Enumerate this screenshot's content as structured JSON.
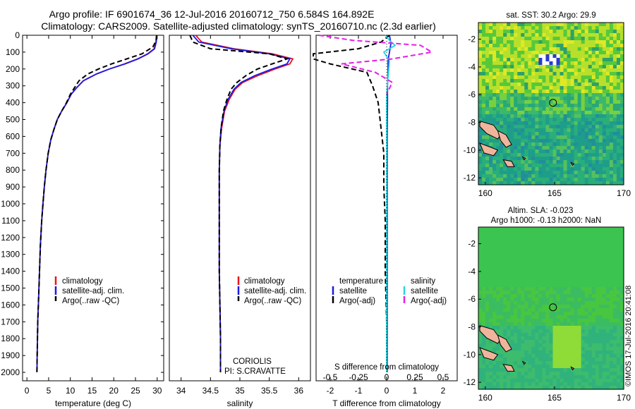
{
  "header": {
    "title_line1": "Argo profile: IF 6901674_36 12-Jul-2016 20160712_750 6.584S 164.892E",
    "title_line2": "Climatology: CARS2009. Satellite-adjusted climatology: synTS_20160710.nc (2.3d earlier)"
  },
  "colors": {
    "climatology": "#e8141c",
    "satellite": "#1a1ae6",
    "argo": "#000000",
    "sal_satellite": "#22d8e6",
    "sal_argo": "#e61ee6",
    "land": "#f0b49c"
  },
  "chart_data": [
    {
      "id": "temperature",
      "type": "line",
      "xlabel": "temperature (deg C)",
      "ylabel": "",
      "xlim": [
        -1,
        31.5
      ],
      "ylim": [
        2050,
        0
      ],
      "y_reversed": true,
      "xticks": [
        "0",
        "5",
        "10",
        "15",
        "20",
        "25",
        "30"
      ],
      "xtick_values": [
        0,
        5,
        10,
        15,
        20,
        25,
        30
      ],
      "yticks": [
        "0",
        "100",
        "200",
        "300",
        "400",
        "500",
        "600",
        "700",
        "800",
        "900",
        "1000",
        "1100",
        "1200",
        "1300",
        "1400",
        "1500",
        "1600",
        "1700",
        "1800",
        "1900",
        "2000"
      ],
      "ytick_values": [
        0,
        100,
        200,
        300,
        400,
        500,
        600,
        700,
        800,
        900,
        1000,
        1100,
        1200,
        1300,
        1400,
        1500,
        1600,
        1700,
        1800,
        1900,
        2000
      ],
      "legend": [
        "climatology",
        "satellite-adj. clim.",
        "Argo(..raw -QC)"
      ],
      "series": [
        {
          "name": "climatology",
          "color": "#e8141c",
          "style": "solid",
          "x": [
            29.8,
            29.7,
            29.3,
            27.8,
            25.5,
            22.5,
            19.0,
            16.0,
            13.0,
            11.5,
            10.2,
            9.2,
            8.0,
            7.0,
            6.2,
            5.5,
            4.9,
            4.4,
            4.0,
            3.7,
            3.4,
            3.1,
            2.9,
            2.7,
            2.5,
            2.4,
            2.3
          ],
          "y": [
            0,
            40,
            80,
            110,
            140,
            170,
            200,
            230,
            270,
            310,
            350,
            400,
            450,
            500,
            560,
            620,
            700,
            800,
            900,
            1000,
            1100,
            1250,
            1400,
            1550,
            1700,
            1850,
            2000
          ]
        },
        {
          "name": "satellite-adj. clim.",
          "color": "#1a1ae6",
          "style": "solid",
          "x": [
            29.9,
            29.8,
            29.4,
            27.9,
            25.6,
            22.6,
            19.0,
            16.0,
            13.0,
            11.5,
            10.2,
            9.2,
            8.0,
            7.0,
            6.2,
            5.5,
            4.9,
            4.4,
            4.0,
            3.7,
            3.4,
            3.1,
            2.9,
            2.7,
            2.5,
            2.4,
            2.3
          ],
          "y": [
            0,
            40,
            80,
            110,
            140,
            170,
            200,
            230,
            270,
            310,
            350,
            400,
            450,
            500,
            560,
            620,
            700,
            800,
            900,
            1000,
            1100,
            1250,
            1400,
            1550,
            1700,
            1850,
            2000
          ]
        },
        {
          "name": "Argo(..raw -QC)",
          "color": "#000000",
          "style": "dash",
          "x": [
            29.9,
            29.8,
            29.0,
            26.5,
            23.0,
            19.5,
            16.5,
            14.0,
            12.0,
            11.0,
            10.0,
            9.1,
            8.0,
            7.0,
            6.2,
            5.5,
            4.9,
            4.4,
            4.0,
            3.7,
            3.4,
            3.1,
            2.9,
            2.7,
            2.5,
            2.4,
            2.3
          ],
          "y": [
            0,
            30,
            70,
            110,
            140,
            170,
            200,
            230,
            270,
            310,
            350,
            400,
            450,
            500,
            560,
            620,
            700,
            800,
            900,
            1000,
            1100,
            1250,
            1400,
            1550,
            1700,
            1850,
            2000
          ]
        }
      ]
    },
    {
      "id": "salinity",
      "type": "line",
      "xlabel": "salinity",
      "ylabel": "",
      "xlim": [
        33.8,
        36.2
      ],
      "ylim": [
        2050,
        0
      ],
      "y_reversed": true,
      "xticks": [
        "34",
        "34.5",
        "35",
        "35.5",
        "36"
      ],
      "xtick_values": [
        34,
        34.5,
        35,
        35.5,
        36
      ],
      "legend": [
        "climatology",
        "satellite-adj. clim.",
        "Argo(..raw -QC)"
      ],
      "annotations": [
        "CORIOLIS",
        "PI: S.CRAVATTE"
      ],
      "series": [
        {
          "name": "climatology",
          "color": "#e8141c",
          "style": "solid",
          "x": [
            34.25,
            34.35,
            34.9,
            35.55,
            35.9,
            35.85,
            35.6,
            35.3,
            35.05,
            34.92,
            34.82,
            34.74,
            34.69,
            34.66,
            34.65,
            34.65,
            34.65,
            34.65,
            34.66,
            34.67,
            34.67
          ],
          "y": [
            0,
            40,
            80,
            110,
            140,
            170,
            200,
            240,
            280,
            320,
            380,
            450,
            550,
            650,
            800,
            1000,
            1200,
            1400,
            1600,
            1800,
            2000
          ]
        },
        {
          "name": "satellite-adj. clim.",
          "color": "#1a1ae6",
          "style": "solid",
          "x": [
            34.2,
            34.3,
            34.85,
            35.5,
            35.85,
            35.8,
            35.55,
            35.25,
            35.02,
            34.9,
            34.8,
            34.73,
            34.68,
            34.66,
            34.65,
            34.65,
            34.65,
            34.65,
            34.66,
            34.67,
            34.67
          ],
          "y": [
            0,
            40,
            80,
            110,
            140,
            170,
            200,
            240,
            280,
            320,
            380,
            450,
            550,
            650,
            800,
            1000,
            1200,
            1400,
            1600,
            1800,
            2000
          ]
        },
        {
          "name": "Argo(..raw -QC)",
          "color": "#000000",
          "style": "dash",
          "x": [
            34.15,
            34.2,
            34.5,
            35.5,
            35.8,
            35.55,
            35.3,
            35.1,
            34.95,
            34.85,
            34.78,
            34.72,
            34.68,
            34.66,
            34.65,
            34.65,
            34.65,
            34.65,
            34.66,
            34.67,
            34.67
          ],
          "y": [
            0,
            40,
            80,
            110,
            140,
            170,
            200,
            240,
            280,
            320,
            380,
            450,
            550,
            650,
            800,
            1000,
            1200,
            1400,
            1600,
            1800,
            2000
          ]
        }
      ]
    },
    {
      "id": "difference",
      "type": "line",
      "xlabel": "T difference from climatology",
      "xlabel_top": "S difference from climatology",
      "xlim": [
        -2.5,
        2.5
      ],
      "ylim": [
        2050,
        0
      ],
      "y_reversed": true,
      "xticks": [
        "-2",
        "-1",
        "0",
        "1",
        "2"
      ],
      "xtick_values": [
        -2,
        -1,
        0,
        1,
        2
      ],
      "s_xticks": [
        "-0.5",
        "-0.25",
        "0",
        "0.25",
        "0.5"
      ],
      "legend_titles": [
        "temperature",
        "salinity"
      ],
      "legend": [
        "satellite",
        "Argo(-adj)",
        "satellite",
        "Argo(-adj)"
      ],
      "series": [
        {
          "name": "satellite",
          "group": "temperature",
          "color": "#1a1ae6",
          "style": "solid",
          "x": [
            0.1,
            0.15,
            0.1,
            0.05,
            0.05,
            0.03,
            0.03,
            0.02,
            0.02,
            0.02,
            0.02,
            0.02,
            0.02,
            0.02
          ],
          "y": [
            0,
            50,
            100,
            150,
            200,
            300,
            400,
            600,
            800,
            1000,
            1200,
            1500,
            1800,
            2000
          ]
        },
        {
          "name": "Argo(-adj)",
          "group": "temperature",
          "color": "#000000",
          "style": "dash",
          "x": [
            0.1,
            -0.2,
            -1.0,
            -2.6,
            -2.6,
            -2.0,
            -0.7,
            -0.5,
            -0.3,
            -0.2,
            -0.1,
            -0.1,
            -0.05,
            -0.05,
            0.0,
            0.0
          ],
          "y": [
            0,
            40,
            80,
            110,
            140,
            170,
            220,
            300,
            400,
            550,
            700,
            900,
            1100,
            1400,
            1700,
            2000
          ]
        },
        {
          "name": "satellite",
          "group": "salinity",
          "color": "#22d8e6",
          "style": "solid",
          "x": [
            -0.05,
            0.1,
            0.3,
            -0.1,
            0.1,
            0.05,
            0.0,
            0.0,
            0.0,
            0.0,
            0.0,
            0.0,
            0.0
          ],
          "y": [
            0,
            30,
            60,
            100,
            150,
            250,
            350,
            500,
            700,
            1000,
            1300,
            1600,
            2000
          ]
        },
        {
          "name": "Argo(-adj)",
          "group": "salinity",
          "color": "#e61ee6",
          "style": "dash",
          "x": [
            -2.4,
            -1.2,
            1.2,
            1.6,
            0.2,
            -1.6,
            -0.4,
            0.2,
            0.0
          ],
          "y": [
            0,
            30,
            60,
            100,
            140,
            170,
            220,
            280,
            350
          ]
        }
      ]
    },
    {
      "id": "sst_map",
      "type": "heatmap",
      "title": "sat. SST: 30.2  Argo: 29.9",
      "xlim": [
        159.5,
        170
      ],
      "ylim": [
        -12.5,
        -0.8
      ],
      "xticks": [
        "160",
        "165",
        "170"
      ],
      "yticks": [
        "-2",
        "-4",
        "-6",
        "-8",
        "-10",
        "-12"
      ],
      "marker": {
        "lon": 164.892,
        "lat": -6.584
      }
    },
    {
      "id": "sla_map",
      "type": "heatmap",
      "title_line1": "Altim. SLA: -0.023",
      "title_line2": "Argo h1000: -0.13  h2000: NaN",
      "xlim": [
        159.5,
        170
      ],
      "ylim": [
        -12.5,
        -0.8
      ],
      "xticks": [
        "160",
        "165",
        "170"
      ],
      "yticks": [
        "-2",
        "-4",
        "-6",
        "-8",
        "-10",
        "-12"
      ],
      "marker": {
        "lon": 164.892,
        "lat": -6.584
      },
      "side_note": "©IMOS 17-Jul-2016 20:41:08"
    }
  ]
}
